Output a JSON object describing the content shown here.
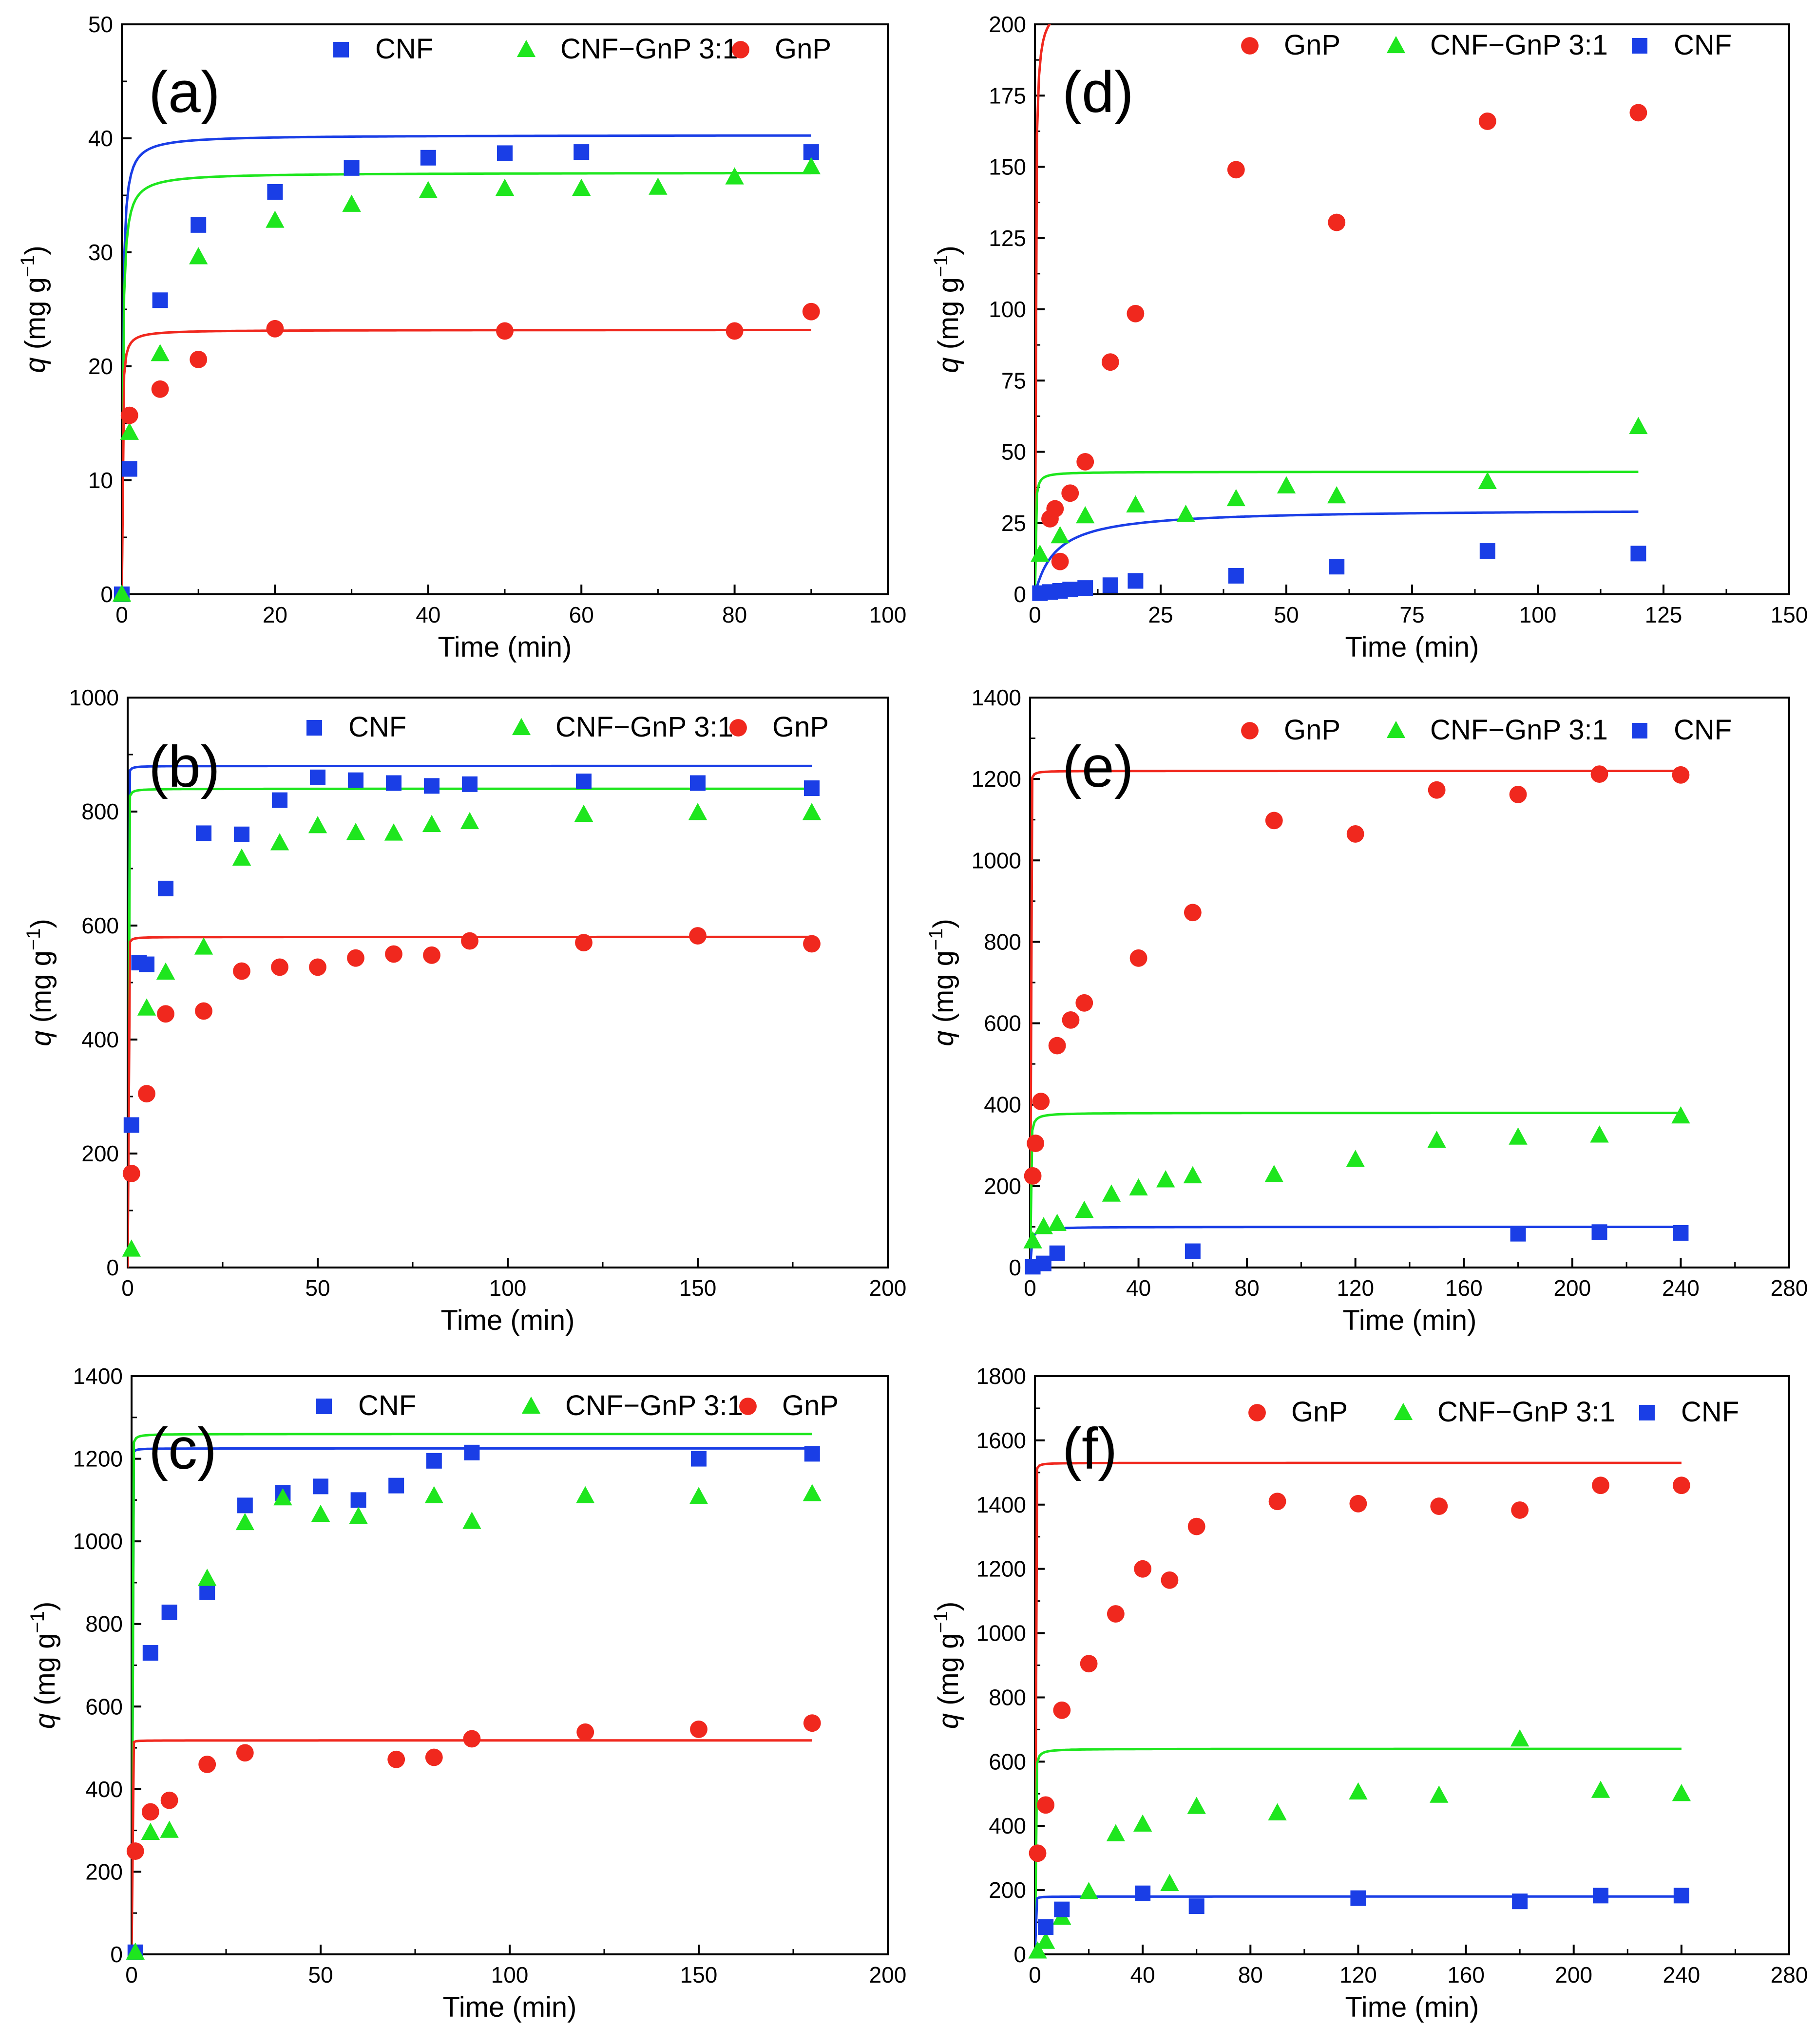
{
  "colors": {
    "CNF": "#1a3ee6",
    "CNF−GnP 3:1": "#1ee61e",
    "GnP": "#f0281e"
  },
  "chart_data": [
    {
      "type": "scatter",
      "label": "(a)",
      "xlabel": "Time (min)",
      "ylabel_italic": "q",
      "ylabel_rest": "(mg g",
      "ylabel_sup": "−1",
      "ylabel_close": ")",
      "xlim": [
        0,
        100
      ],
      "ylim": [
        0,
        50
      ],
      "xticks": [
        "0",
        "20",
        "40",
        "60",
        "80",
        "100"
      ],
      "yticks": [
        "0",
        "10",
        "20",
        "30",
        "40",
        "50"
      ],
      "legend_order": [
        "CNF",
        "CNF−GnP 3:1",
        "GnP"
      ],
      "series": [
        {
          "name": "CNF",
          "marker": "square",
          "x": [
            0,
            1,
            5,
            10,
            20,
            30,
            40,
            50,
            60,
            90
          ],
          "y": [
            0,
            11,
            25.8,
            32.4,
            35.3,
            37.4,
            38.3,
            38.7,
            38.8,
            38.8
          ],
          "fit": {
            "qe": 40.3,
            "k": 0.22
          }
        },
        {
          "name": "CNF−GnP 3:1",
          "marker": "triangle",
          "x": [
            0,
            1,
            5,
            10,
            20,
            30,
            40,
            50,
            60,
            70,
            80,
            90
          ],
          "y": [
            0,
            14.2,
            21.1,
            29.6,
            32.8,
            34.2,
            35.4,
            35.6,
            35.6,
            35.7,
            36.6,
            37.5
          ],
          "fit": {
            "qe": 37,
            "k": 0.22
          }
        },
        {
          "name": "GnP",
          "marker": "circle",
          "x": [
            1,
            5,
            10,
            20,
            50,
            80,
            90
          ],
          "y": [
            15.7,
            18,
            20.6,
            23.3,
            23.1,
            23.1,
            24.8
          ],
          "fit": {
            "qe": 23.2,
            "k": 0.7
          }
        }
      ]
    },
    {
      "type": "scatter",
      "label": "(d)",
      "xlabel": "Time (min)",
      "ylabel_italic": "q",
      "ylabel_rest": "(mg g",
      "ylabel_sup": "−1",
      "ylabel_close": ")",
      "xlim": [
        0,
        150
      ],
      "ylim": [
        0,
        200
      ],
      "xticks": [
        "0",
        "25",
        "50",
        "75",
        "100",
        "125",
        "150"
      ],
      "yticks": [
        "0",
        "25",
        "50",
        "75",
        "100",
        "125",
        "150",
        "175",
        "200"
      ],
      "legend_order": [
        "GnP",
        "CNF−GnP 3:1",
        "CNF"
      ],
      "series": [
        {
          "name": "GnP",
          "marker": "circle",
          "x": [
            3,
            4,
            5,
            7,
            10,
            15,
            20,
            40,
            60,
            90,
            120
          ],
          "y": [
            26.5,
            30,
            11.5,
            35.5,
            46.5,
            81.5,
            98.5,
            149,
            130.5,
            166,
            169
          ],
          "fit": {
            "qe": 208,
            "k": 0.0415
          }
        },
        {
          "name": "CNF−GnP 3:1",
          "marker": "triangle",
          "x": [
            1,
            5,
            10,
            20,
            30,
            40,
            50,
            60,
            90,
            120
          ],
          "y": [
            14,
            20.5,
            27.5,
            31.3,
            28,
            33.5,
            38,
            34.5,
            39.5,
            58.8
          ],
          "fit": {
            "qe": 43,
            "k": 0.265
          }
        },
        {
          "name": "CNF",
          "marker": "square",
          "x": [
            1,
            3,
            5,
            7,
            10,
            15,
            20,
            40,
            60,
            90,
            120
          ],
          "y": [
            0.4,
            0.8,
            1.2,
            1.7,
            2.2,
            3.2,
            4.7,
            6.5,
            9.7,
            15.2,
            14.3
          ],
          "fit": {
            "qe": 30,
            "k": 0.008
          }
        }
      ]
    },
    {
      "type": "scatter",
      "label": "(b)",
      "xlabel": "Time (min)",
      "ylabel_italic": "q",
      "ylabel_rest": "(mg g",
      "ylabel_sup": "−1",
      "ylabel_close": ")",
      "xlim": [
        0,
        200
      ],
      "ylim": [
        0,
        1000
      ],
      "xticks": [
        "0",
        "50",
        "100",
        "150",
        "200"
      ],
      "yticks": [
        "0",
        "200",
        "400",
        "600",
        "800",
        "1000"
      ],
      "legend_order": [
        "CNF",
        "CNF−GnP 3:1",
        "GnP"
      ],
      "series": [
        {
          "name": "CNF",
          "marker": "square",
          "x": [
            1,
            3,
            5,
            10,
            20,
            30,
            40,
            50,
            60,
            70,
            80,
            90,
            120,
            150,
            180
          ],
          "y": [
            250,
            535,
            532,
            665,
            762,
            760,
            820,
            860,
            855,
            850,
            845,
            848,
            853,
            850,
            841
          ],
          "fit": {
            "qe": 880,
            "k": 0.21
          }
        },
        {
          "name": "CNF−GnP 3:1",
          "marker": "triangle",
          "x": [
            1,
            5,
            10,
            20,
            30,
            40,
            50,
            60,
            70,
            80,
            90,
            120,
            150,
            180
          ],
          "y": [
            32,
            455,
            518,
            562,
            718,
            745,
            775,
            763,
            762,
            777,
            782,
            795,
            798,
            798
          ],
          "fit": {
            "qe": 840,
            "k": 0.13
          }
        },
        {
          "name": "GnP",
          "marker": "circle",
          "x": [
            1,
            5,
            10,
            20,
            30,
            40,
            50,
            60,
            70,
            80,
            90,
            120,
            150,
            180
          ],
          "y": [
            165,
            305,
            445,
            450,
            520,
            527,
            527,
            543,
            550,
            548,
            573,
            570,
            582,
            568
          ],
          "fit": {
            "qe": 580,
            "k": 0.19
          }
        }
      ]
    },
    {
      "type": "scatter",
      "label": "(e)",
      "xlabel": "Time (min)",
      "ylabel_italic": "q",
      "ylabel_rest": "(mg g",
      "ylabel_sup": "−1",
      "ylabel_close": ")",
      "xlim": [
        0,
        280
      ],
      "ylim": [
        0,
        1400
      ],
      "xticks": [
        "0",
        "40",
        "80",
        "120",
        "160",
        "200",
        "240",
        "280"
      ],
      "yticks": [
        "0",
        "200",
        "400",
        "600",
        "800",
        "1000",
        "1200",
        "1400"
      ],
      "legend_order": [
        "GnP",
        "CNF−GnP 3:1",
        "CNF"
      ],
      "series": [
        {
          "name": "GnP",
          "marker": "circle",
          "x": [
            1,
            2,
            4,
            10,
            15,
            20,
            40,
            60,
            90,
            120,
            150,
            180,
            210,
            240
          ],
          "y": [
            225,
            305,
            408,
            545,
            608,
            650,
            760,
            872,
            1098,
            1065,
            1173,
            1162,
            1212,
            1210
          ],
          "fit": {
            "qe": 1220,
            "k": 0.075
          }
        },
        {
          "name": "CNF−GnP 3:1",
          "marker": "triangle",
          "x": [
            1,
            5,
            10,
            20,
            30,
            40,
            50,
            60,
            90,
            120,
            150,
            180,
            210,
            240
          ],
          "y": [
            65,
            100,
            108,
            140,
            180,
            195,
            215,
            225,
            228,
            265,
            312,
            320,
            325,
            372
          ],
          "fit": {
            "qe": 380,
            "k": 0.0255
          }
        },
        {
          "name": "CNF",
          "marker": "square",
          "x": [
            1,
            5,
            10,
            60,
            180,
            210,
            240
          ],
          "y": [
            2,
            10,
            35,
            40,
            83,
            87,
            85
          ],
          "fit": {
            "qe": 100,
            "k": 0.025
          }
        }
      ]
    },
    {
      "type": "scatter",
      "label": "(c)",
      "xlabel": "Time (min)",
      "ylabel_italic": "q",
      "ylabel_rest": "(mg g",
      "ylabel_sup": "−1",
      "ylabel_close": ")",
      "xlim": [
        0,
        200
      ],
      "ylim": [
        0,
        1400
      ],
      "xticks": [
        "0",
        "50",
        "100",
        "150",
        "200"
      ],
      "yticks": [
        "0",
        "200",
        "400",
        "600",
        "800",
        "1000",
        "1200",
        "1400"
      ],
      "legend_order": [
        "CNF",
        "CNF−GnP 3:1",
        "GnP"
      ],
      "series": [
        {
          "name": "CNF",
          "marker": "square",
          "x": [
            1,
            5,
            10,
            20,
            30,
            40,
            50,
            60,
            70,
            80,
            90,
            150,
            180
          ],
          "y": [
            5,
            730,
            828,
            877,
            1087,
            1117,
            1133,
            1100,
            1135,
            1195,
            1215,
            1200,
            1212
          ],
          "fit": {
            "qe": 1225,
            "k": 0.21
          }
        },
        {
          "name": "CNF−GnP 3:1",
          "marker": "triangle",
          "x": [
            1,
            5,
            10,
            20,
            30,
            40,
            50,
            60,
            80,
            90,
            120,
            150,
            180
          ],
          "y": [
            5,
            295,
            300,
            910,
            1045,
            1105,
            1065,
            1060,
            1110,
            1048,
            1110,
            1108,
            1115
          ],
          "fit": {
            "qe": 1260,
            "k": 0.082
          }
        },
        {
          "name": "GnP",
          "marker": "circle",
          "x": [
            1,
            5,
            10,
            20,
            30,
            70,
            80,
            90,
            120,
            150,
            180
          ],
          "y": [
            250,
            345,
            373,
            460,
            488,
            472,
            477,
            522,
            538,
            545,
            560
          ],
          "fit": {
            "qe": 518,
            "k": 0.43
          }
        }
      ]
    },
    {
      "type": "scatter",
      "label": "(f)",
      "xlabel": "Time (min)",
      "ylabel_italic": "q",
      "ylabel_rest": "(mg g",
      "ylabel_sup": "−1",
      "ylabel_close": ")",
      "xlim": [
        0,
        280
      ],
      "ylim": [
        0,
        1800
      ],
      "xticks": [
        "0",
        "40",
        "80",
        "120",
        "160",
        "200",
        "240",
        "280"
      ],
      "yticks": [
        "0",
        "200",
        "400",
        "600",
        "800",
        "1000",
        "1200",
        "1400",
        "1600",
        "1800"
      ],
      "legend_order": [
        "GnP",
        "CNF−GnP 3:1",
        "CNF"
      ],
      "series": [
        {
          "name": "GnP",
          "marker": "circle",
          "x": [
            1,
            4,
            10,
            20,
            30,
            40,
            50,
            60,
            90,
            120,
            150,
            180,
            210,
            240
          ],
          "y": [
            315,
            465,
            760,
            905,
            1060,
            1200,
            1165,
            1332,
            1410,
            1403,
            1395,
            1383,
            1460,
            1460
          ],
          "fit": {
            "qe": 1530,
            "k": 0.071
          }
        },
        {
          "name": "CNF−GnP 3:1",
          "marker": "triangle",
          "x": [
            1,
            4,
            10,
            20,
            30,
            40,
            50,
            60,
            90,
            120,
            150,
            180,
            210,
            240
          ],
          "y": [
            10,
            40,
            115,
            195,
            375,
            405,
            220,
            460,
            440,
            505,
            495,
            670,
            510,
            500
          ],
          "fit": {
            "qe": 640,
            "k": 0.0255
          }
        },
        {
          "name": "CNF",
          "marker": "square",
          "x": [
            4,
            10,
            40,
            60,
            120,
            180,
            210,
            240
          ],
          "y": [
            85,
            140,
            190,
            150,
            175,
            165,
            183,
            183
          ],
          "fit": {
            "qe": 180,
            "k": 0.2
          }
        }
      ]
    }
  ]
}
